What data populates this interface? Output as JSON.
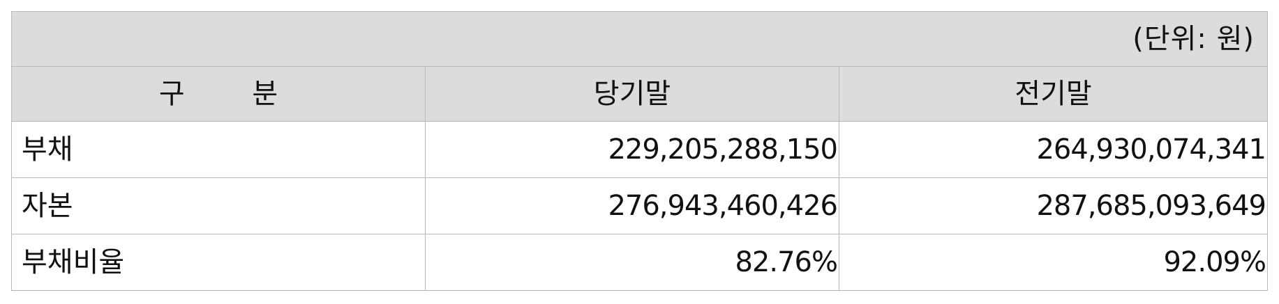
{
  "unit_note": "(단위: 원)",
  "headers": {
    "category": "구 분",
    "current": "당기말",
    "previous": "전기말"
  },
  "rows": [
    {
      "label": "부채",
      "current": "229,205,288,150",
      "previous": "264,930,074,341"
    },
    {
      "label": "자본",
      "current": "276,943,460,426",
      "previous": "287,685,093,649"
    },
    {
      "label": "부채비율",
      "current": "82.76%",
      "previous": "92.09%"
    }
  ]
}
